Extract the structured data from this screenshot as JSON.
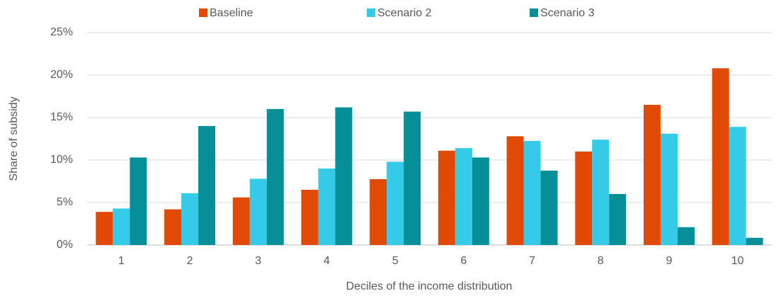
{
  "chart_data": {
    "type": "bar",
    "x_label": "Deciles of the income distribution",
    "y_label": "Share of subsidy",
    "categories": [
      "1",
      "2",
      "3",
      "4",
      "5",
      "6",
      "7",
      "8",
      "9",
      "10"
    ],
    "series": [
      {
        "name": "Baseline",
        "color": "#e04a04",
        "values": [
          3.9,
          4.2,
          5.6,
          6.5,
          7.75,
          11.1,
          12.8,
          11.0,
          16.5,
          20.8
        ]
      },
      {
        "name": "Scenario 2",
        "color": "#33cbe8",
        "values": [
          4.3,
          6.1,
          7.8,
          9.0,
          9.8,
          11.4,
          12.25,
          12.4,
          13.1,
          13.9
        ]
      },
      {
        "name": "Scenario 3",
        "color": "#068f96",
        "values": [
          10.3,
          14.0,
          16.0,
          16.2,
          15.7,
          10.3,
          8.75,
          6.0,
          2.1,
          0.85
        ]
      }
    ],
    "ylim": [
      0,
      25
    ],
    "yticks": [
      {
        "value": 0,
        "label": "0%"
      },
      {
        "value": 5,
        "label": "5%"
      },
      {
        "value": 10,
        "label": "10%"
      },
      {
        "value": 15,
        "label": "15%"
      },
      {
        "value": 20,
        "label": "20%"
      },
      {
        "value": 25,
        "label": "25%"
      }
    ],
    "grid": true,
    "legend": "top"
  }
}
